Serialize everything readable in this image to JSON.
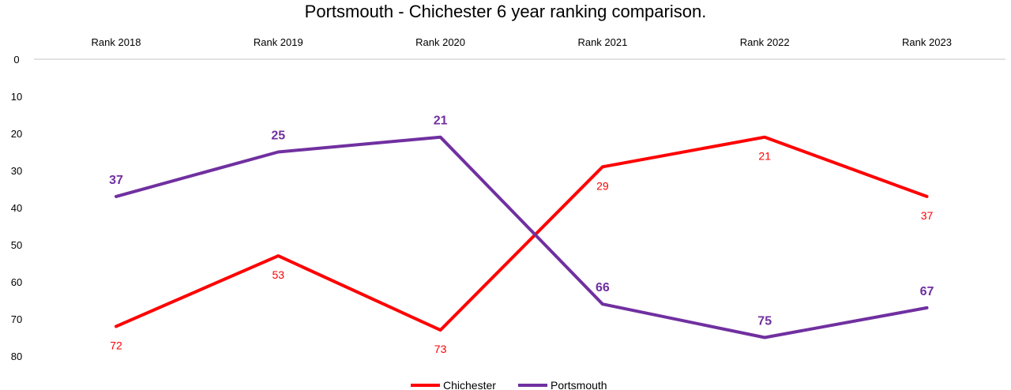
{
  "chart_data": {
    "type": "line",
    "title": "Portsmouth - Chichester 6 year ranking comparison.",
    "categories": [
      "Rank 2018",
      "Rank 2019",
      "Rank 2020",
      "Rank 2021",
      "Rank 2022",
      "Rank 2023"
    ],
    "y_ticks": [
      "0",
      "10",
      "20",
      "30",
      "40",
      "50",
      "60",
      "70",
      "80"
    ],
    "ylim": [
      0,
      80
    ],
    "y_reversed": true,
    "x_axis_position": "top",
    "grid": false,
    "legend_position": "bottom",
    "series": [
      {
        "name": "Chichester",
        "color": "#ff0000",
        "values": [
          72,
          53,
          73,
          29,
          21,
          37
        ],
        "labels": [
          "72",
          "53",
          "73",
          "29",
          "21",
          "37"
        ],
        "label_position": "below",
        "label_bold": false
      },
      {
        "name": "Portsmouth",
        "color": "#7030a0",
        "values": [
          37,
          25,
          21,
          66,
          75,
          67
        ],
        "labels": [
          "37",
          "25",
          "21",
          "66",
          "75",
          "67"
        ],
        "label_position": "above",
        "label_bold": true
      }
    ]
  }
}
